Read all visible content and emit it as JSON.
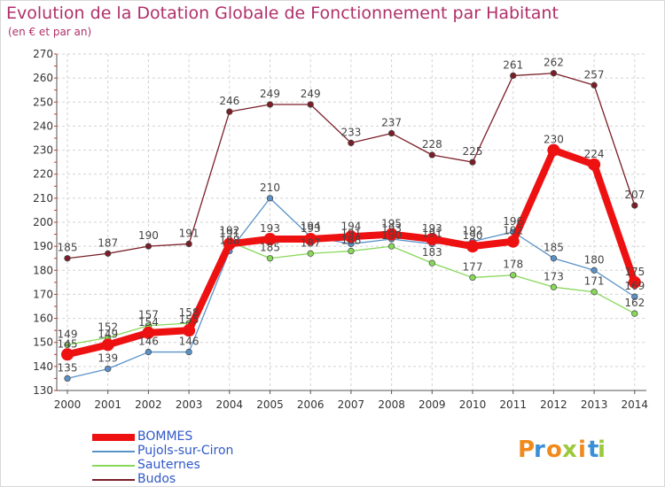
{
  "title": "Evolution de la Dotation Globale de Fonctionnement par Habitant",
  "subtitle": "(en € et par an)",
  "chart_data": {
    "type": "line",
    "x": [
      "2000",
      "2001",
      "2002",
      "2003",
      "2004",
      "2005",
      "2006",
      "2007",
      "2008",
      "2009",
      "2010",
      "2011",
      "2012",
      "2013",
      "2014"
    ],
    "ylim": [
      130,
      270
    ],
    "yticks": [
      130,
      140,
      150,
      160,
      170,
      180,
      190,
      200,
      210,
      220,
      230,
      240,
      250,
      260,
      270
    ],
    "grid": true,
    "legend_position": "bottom-left",
    "series": [
      {
        "name": "Budos",
        "color": "#7a1f28",
        "values": [
          185,
          187,
          190,
          191,
          246,
          249,
          249,
          233,
          237,
          228,
          225,
          261,
          262,
          257,
          207
        ]
      },
      {
        "name": "Sauternes",
        "color": "#88d85a",
        "values": [
          149,
          152,
          157,
          158,
          192,
          185,
          187,
          188,
          190,
          183,
          177,
          178,
          173,
          171,
          162
        ]
      },
      {
        "name": "Pujols-sur-Ciron",
        "color": "#5a92c8",
        "values": [
          135,
          139,
          146,
          146,
          188,
          210,
          194,
          191,
          193,
          191,
          192,
          196,
          185,
          180,
          169
        ]
      },
      {
        "name": "BOMMES",
        "color": "#ee1111",
        "values": [
          145,
          149,
          154,
          155,
          191,
          193,
          193,
          194,
          195,
          193,
          190,
          192,
          230,
          224,
          175
        ]
      }
    ],
    "legend": [
      "BOMMES",
      "Pujols-sur-Ciron",
      "Sauternes",
      "Budos"
    ]
  },
  "brand": {
    "letters": [
      "P",
      "r",
      "o",
      "x",
      "i",
      "t",
      "i"
    ],
    "colors": [
      "#f08a1c",
      "#3a8fd8",
      "#f08a1c",
      "#9bc93a",
      "#f08a1c",
      "#3a8fd8",
      "#9bc93a"
    ]
  }
}
